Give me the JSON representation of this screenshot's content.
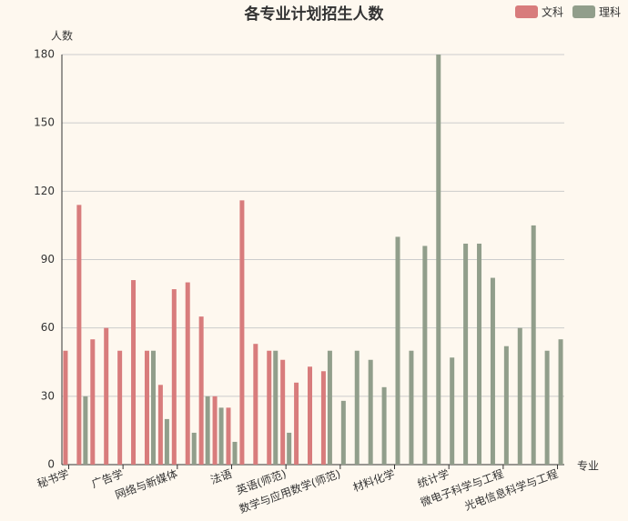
{
  "chart_data": {
    "type": "bar",
    "title": "各专业计划招生人数",
    "y_axis_label": "人数",
    "x_axis_label": "专业",
    "categories": [
      "秘书学",
      null,
      null,
      null,
      "广告学",
      null,
      null,
      null,
      "网络与新媒体",
      null,
      null,
      null,
      "法语",
      null,
      null,
      null,
      "英语(师范)",
      null,
      null,
      null,
      "数学与应用数学(师范)",
      null,
      null,
      null,
      "材料化学",
      null,
      null,
      null,
      "统计学",
      null,
      null,
      null,
      "微电子科学与工程",
      null,
      null,
      null,
      "光电信息科学与工程"
    ],
    "series": [
      {
        "name": "文科",
        "color": "#d87c7c",
        "values": [
          50,
          114,
          55,
          60,
          50,
          81,
          50,
          35,
          77,
          80,
          65,
          30,
          25,
          116,
          53,
          50,
          46,
          36,
          43,
          41,
          null,
          null,
          null,
          null,
          null,
          null,
          null,
          null,
          null,
          null,
          null,
          null,
          null,
          null,
          null,
          null,
          null
        ]
      },
      {
        "name": "理科",
        "color": "#919e8b",
        "values": [
          null,
          30,
          null,
          null,
          null,
          null,
          50,
          20,
          null,
          14,
          30,
          25,
          10,
          null,
          null,
          50,
          14,
          null,
          null,
          50,
          28,
          50,
          46,
          34,
          100,
          50,
          96,
          180,
          47,
          97,
          97,
          82,
          52,
          60,
          105,
          50,
          55
        ]
      }
    ],
    "ylim": [
      0,
      180
    ],
    "yticks": [
      0,
      30,
      60,
      90,
      120,
      150,
      180
    ],
    "grid": true,
    "legend": "top-right"
  }
}
